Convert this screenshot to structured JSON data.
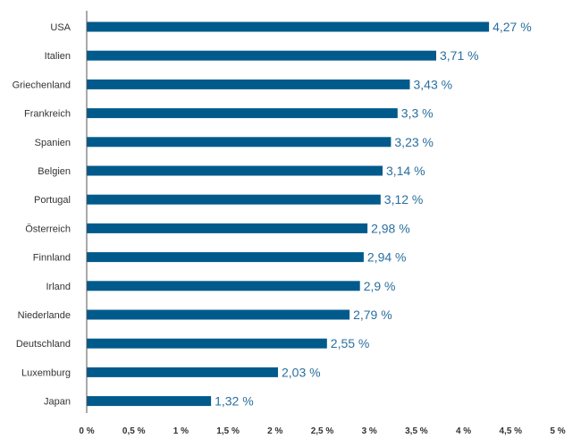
{
  "chart_data": {
    "type": "bar",
    "orientation": "horizontal",
    "categories": [
      "USA",
      "Italien",
      "Griechenland",
      "Frankreich",
      "Spanien",
      "Belgien",
      "Portugal",
      "Österreich",
      "Finnland",
      "Irland",
      "Niederlande",
      "Deutschland",
      "Luxemburg",
      "Japan"
    ],
    "values": [
      4.27,
      3.71,
      3.43,
      3.3,
      3.23,
      3.14,
      3.12,
      2.98,
      2.94,
      2.9,
      2.79,
      2.55,
      2.03,
      1.32
    ],
    "value_labels": [
      "4,27 %",
      "3,71 %",
      "3,43 %",
      "3,3 %",
      "3,23 %",
      "3,14 %",
      "3,12 %",
      "2,98 %",
      "2,94 %",
      "2,9 %",
      "2,79 %",
      "2,55 %",
      "2,03 %",
      "1,32 %"
    ],
    "x_ticks": [
      0,
      0.5,
      1,
      1.5,
      2,
      2.5,
      3,
      3.5,
      4,
      4.5,
      5
    ],
    "x_tick_labels": [
      "0 %",
      "0,5 %",
      "1 %",
      "1,5 %",
      "2 %",
      "2,5 %",
      "3 %",
      "3,5 %",
      "4 %",
      "4,5 %",
      "5 %"
    ],
    "xlim": [
      0,
      5
    ],
    "title": "",
    "xlabel": "",
    "ylabel": "",
    "grid": false,
    "legend": "none",
    "colors": {
      "bar": "#005a8c",
      "value_label": "#2a6f9e",
      "axis": "#555555",
      "text": "#333333"
    }
  }
}
